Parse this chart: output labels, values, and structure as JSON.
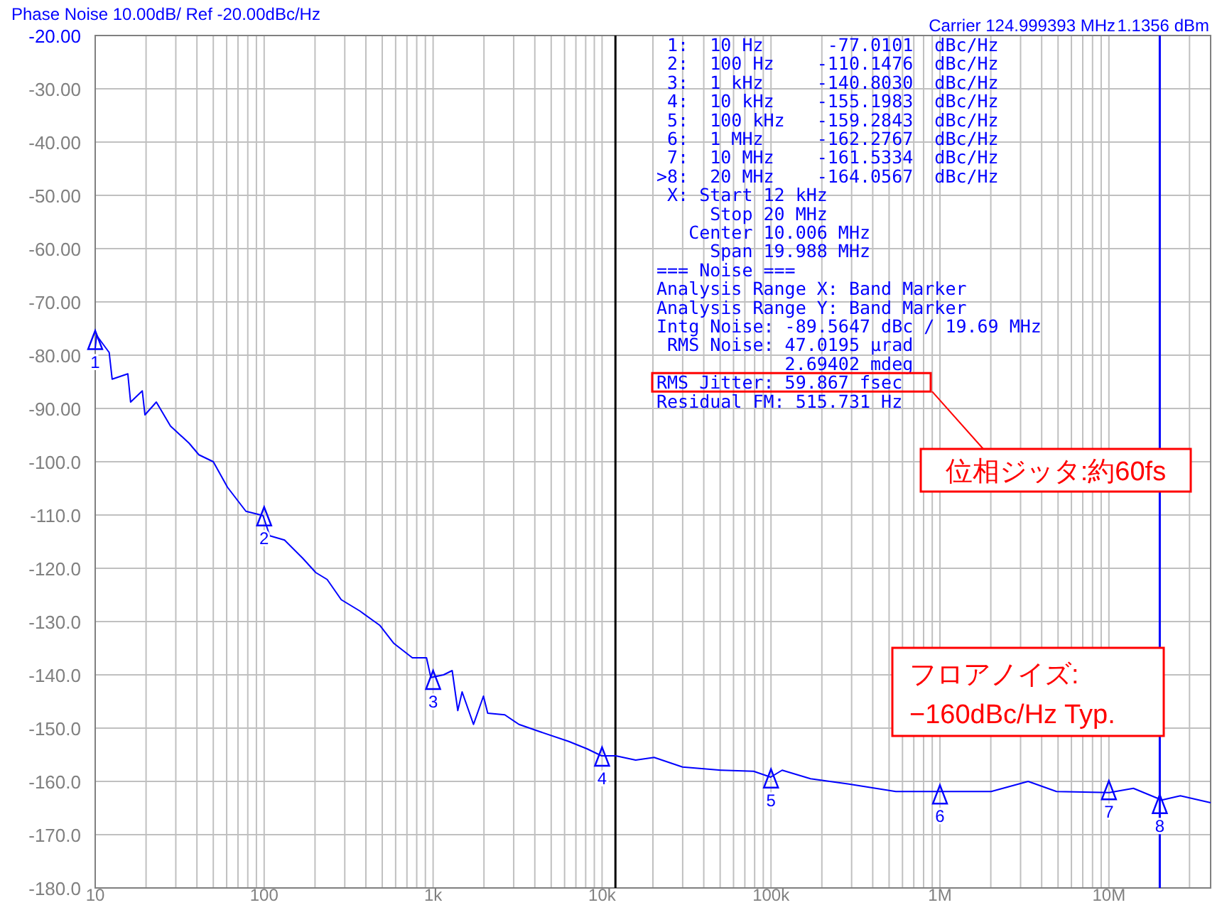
{
  "chart_data": {
    "type": "line",
    "title": "Phase Noise 10.00dB/ Ref -20.00dBc/Hz",
    "log": "x",
    "xlim": [
      10,
      40000000
    ],
    "ylim": [
      -180,
      -20
    ],
    "xticks": [
      {
        "value": 10,
        "label": "10"
      },
      {
        "value": 100,
        "label": "100"
      },
      {
        "value": 1000,
        "label": "1k"
      },
      {
        "value": 10000,
        "label": "10k"
      },
      {
        "value": 100000,
        "label": "100k"
      },
      {
        "value": 1000000,
        "label": "1M"
      },
      {
        "value": 10000000,
        "label": "10M"
      }
    ],
    "yticks": [
      {
        "value": -20,
        "label": "-20.00"
      },
      {
        "value": -30,
        "label": "-30.00"
      },
      {
        "value": -40,
        "label": "-40.00"
      },
      {
        "value": -50,
        "label": "-50.00"
      },
      {
        "value": -60,
        "label": "-60.00"
      },
      {
        "value": -70,
        "label": "-70.00"
      },
      {
        "value": -80,
        "label": "-80.00"
      },
      {
        "value": -90,
        "label": "-90.00"
      },
      {
        "value": -100,
        "label": "-100.0"
      },
      {
        "value": -110,
        "label": "-110.0"
      },
      {
        "value": -120,
        "label": "-120.0"
      },
      {
        "value": -130,
        "label": "-130.0"
      },
      {
        "value": -140,
        "label": "-140.0"
      },
      {
        "value": -150,
        "label": "-150.0"
      },
      {
        "value": -160,
        "label": "-160.0"
      },
      {
        "value": -170,
        "label": "-170.0"
      },
      {
        "value": -180,
        "label": "-180.0"
      }
    ],
    "grid": true,
    "series": [
      {
        "color": "#0000ff",
        "x": [
          10,
          10.2,
          12.1,
          12.6,
          15.6,
          16.2,
          19,
          19.7,
          23,
          27.9,
          35.9,
          41.1,
          50,
          60.7,
          78,
          98.4,
          108,
          132,
          169,
          202,
          236,
          286,
          368,
          483,
          586,
          754,
          914,
          970,
          1153,
          1297,
          1400,
          1485,
          1734,
          1986,
          2105,
          2655,
          3222,
          4313,
          6353,
          8168,
          9930,
          12050,
          15810,
          20330,
          29940,
          50550,
          78900,
          99500,
          116400,
          171400,
          289100,
          548000,
          1019000,
          2009000,
          3327000,
          4898000,
          10050000,
          13960000,
          20560000,
          26480000,
          40000000
        ],
        "values": [
          -78.7,
          -76.3,
          -79.5,
          -84.5,
          -83.5,
          -88.8,
          -86.7,
          -91.2,
          -88.8,
          -93.3,
          -96.5,
          -98.7,
          -100,
          -104.8,
          -109.3,
          -110.1,
          -113.9,
          -114.7,
          -118.1,
          -120.8,
          -122.1,
          -125.9,
          -128,
          -130.7,
          -134.1,
          -136.8,
          -136.8,
          -140.5,
          -140,
          -139.2,
          -146.7,
          -143.2,
          -149.3,
          -144,
          -147.2,
          -147.5,
          -149.3,
          -150.7,
          -152.5,
          -153.9,
          -155.2,
          -155.2,
          -156,
          -155.5,
          -157.3,
          -157.9,
          -158.1,
          -159.2,
          -157.9,
          -159.5,
          -160.5,
          -161.9,
          -161.9,
          -161.9,
          -160,
          -161.9,
          -162.1,
          -161.3,
          -163.5,
          -162.7,
          -164
        ]
      },
      {
        "type": "scatter",
        "color": "#0000ff",
        "marker": "triangle",
        "x": [
          10,
          100,
          1000,
          10000,
          100000,
          1000000,
          10000000,
          20000000
        ],
        "values": [
          -77.0,
          -110.1,
          -140.8,
          -155.2,
          -159.3,
          -162.3,
          -161.5,
          -164.1
        ]
      }
    ],
    "ref_lines": [
      {
        "axis": "x",
        "value": 12000,
        "color": "#000000"
      },
      {
        "axis": "x",
        "value": 20000000,
        "color": "#0000ff"
      }
    ],
    "annotations": [
      "Carrier 124.999393 MHz",
      "1.1356 dBm",
      " 1:  10 Hz      -77.0101  dBc/Hz",
      " 2:  100 Hz    -110.1476  dBc/Hz",
      " 3:  1 kHz     -140.8030  dBc/Hz",
      " 4:  10 kHz    -155.1983  dBc/Hz",
      " 5:  100 kHz   -159.2843  dBc/Hz",
      " 6:  1 MHz     -162.2767  dBc/Hz",
      " 7:  10 MHz    -161.5334  dBc/Hz",
      ">8:  20 MHz    -164.0567  dBc/Hz",
      " X: Start 12 kHz",
      "     Stop 20 MHz",
      "   Center 10.006 MHz",
      "     Span 19.988 MHz",
      "=== Noise ===",
      "Analysis Range X: Band Marker",
      "Analysis Range Y: Band Marker",
      "Intg Noise: -89.5647 dBc / 19.69 MHz",
      " RMS Noise: 47.0195 µrad",
      "            2.69402 mdeg",
      "RMS Jitter: 59.867 fsec",
      "Residual FM: 515.731 Hz",
      "位相ジッタ:約60fs",
      "フロアノイズ:\n−160dBc/Hz Typ.",
      {
        "text": "1",
        "x": 10,
        "y": -77.0
      },
      {
        "text": "2",
        "x": 100,
        "y": -110.1
      },
      {
        "text": "3",
        "x": 1000,
        "y": -140.8
      },
      {
        "text": "4",
        "x": 10000,
        "y": -155.2
      },
      {
        "text": "5",
        "x": 100000,
        "y": -159.3
      },
      {
        "text": "6",
        "x": 1000000,
        "y": -162.3
      },
      {
        "text": "7",
        "x": 10000000,
        "y": -161.5
      },
      {
        "text": "8",
        "x": 20000000,
        "y": -164.1
      }
    ]
  }
}
